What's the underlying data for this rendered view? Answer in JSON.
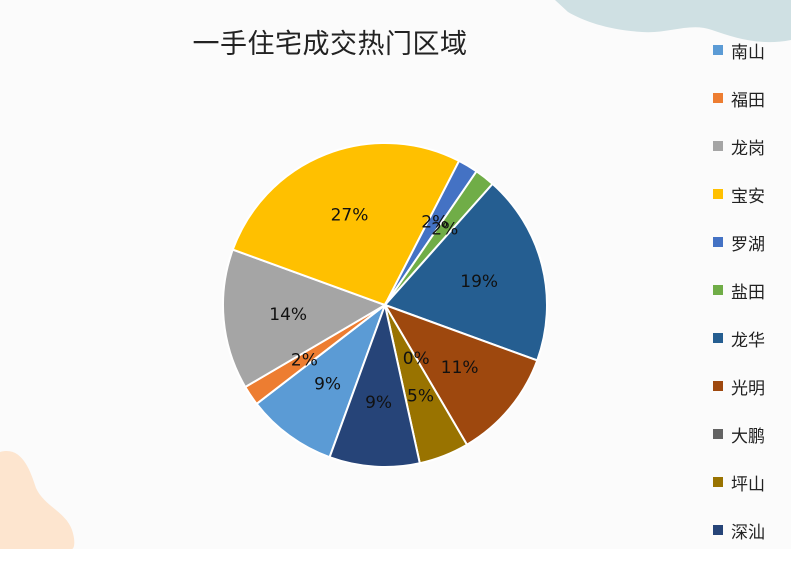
{
  "chart_data": {
    "type": "pie",
    "title": "一手住宅成交热门区域",
    "legend_position": "right",
    "categories": [
      "南山",
      "福田",
      "龙岗",
      "宝安",
      "罗湖",
      "盐田",
      "龙华",
      "光明",
      "大鹏",
      "坪山",
      "深汕"
    ],
    "values": [
      9,
      2,
      14,
      27,
      2,
      2,
      19,
      11,
      0,
      5,
      9
    ],
    "labels": [
      "9%",
      "2%",
      "14%",
      "27%",
      "2%",
      "2%",
      "19%",
      "11%",
      "0%",
      "5%",
      "9%"
    ],
    "colors": [
      "#5b9bd5",
      "#ed7d31",
      "#a5a5a5",
      "#ffc000",
      "#4472c4",
      "#70ad47",
      "#255e91",
      "#9e480e",
      "#636363",
      "#997300",
      "#264478"
    ]
  }
}
